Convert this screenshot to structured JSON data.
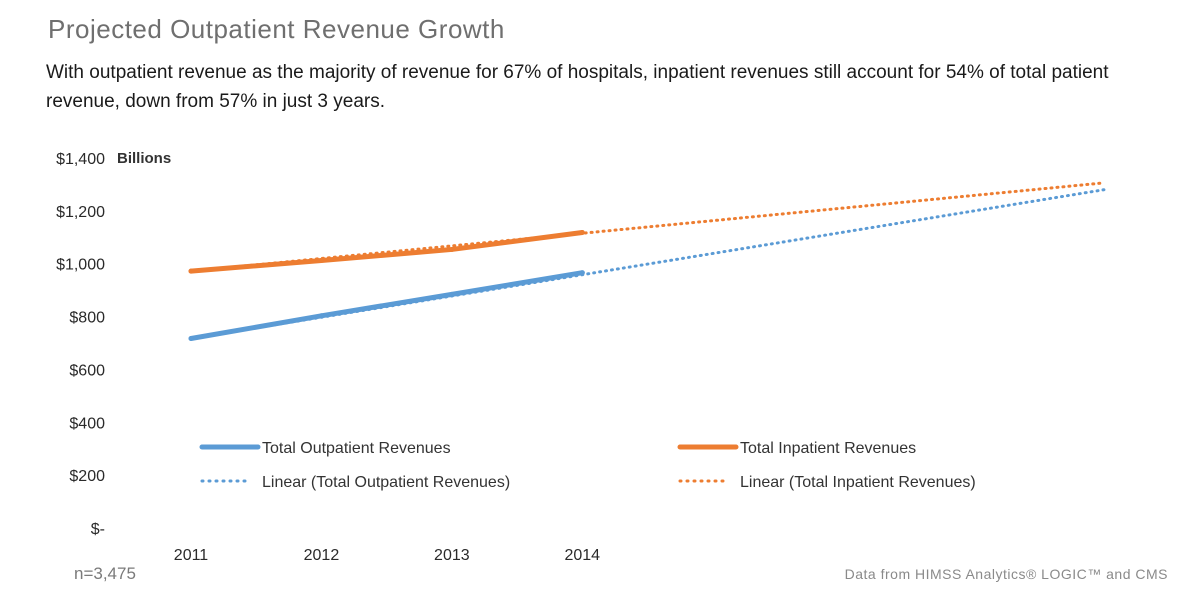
{
  "header": {
    "title": "Projected Outpatient Revenue Growth",
    "subtitle": "With outpatient revenue as the majority of revenue for 67% of hospitals, inpatient revenues still account for 54% of total patient revenue, down from 57% in just 3 years."
  },
  "chart_data": {
    "type": "line",
    "title": "",
    "xlabel": "",
    "ylabel": "",
    "unit_label": "Billions",
    "x": [
      "2011",
      "2012",
      "2013",
      "2014"
    ],
    "ylim": [
      0,
      1400
    ],
    "yticks": [
      {
        "value": 0,
        "label": "$-"
      },
      {
        "value": 200,
        "label": "$200"
      },
      {
        "value": 400,
        "label": "$400"
      },
      {
        "value": 600,
        "label": "$600"
      },
      {
        "value": 800,
        "label": "$800"
      },
      {
        "value": 1000,
        "label": "$1,000"
      },
      {
        "value": 1200,
        "label": "$1,200"
      },
      {
        "value": 1400,
        "label": "$1,400"
      }
    ],
    "grid": false,
    "legend_position": "bottom",
    "series": [
      {
        "name": "Total Outpatient Revenues",
        "values": [
          717,
          803,
          884,
          966
        ],
        "color": "#5b9bd5",
        "style": "solid"
      },
      {
        "name": "Total Inpatient Revenues",
        "values": [
          972,
          1012,
          1054,
          1118
        ],
        "color": "#ed7d31",
        "style": "solid"
      }
    ],
    "trendlines": [
      {
        "name": "Linear (Total Outpatient Revenues)",
        "from_x": 2011,
        "to_x": 2018,
        "values_at_ends": [
          717,
          1280
        ],
        "color": "#5b9bd5",
        "style": "dotted"
      },
      {
        "name": "Linear (Total Inpatient Revenues)",
        "from_x": 2011,
        "to_x": 2018,
        "values_at_ends": [
          972,
          1306
        ],
        "color": "#ed7d31",
        "style": "dotted"
      }
    ]
  },
  "footer": {
    "sample_size": "n=3,475",
    "source": "Data from HIMSS Analytics® LOGIC™ and CMS"
  }
}
